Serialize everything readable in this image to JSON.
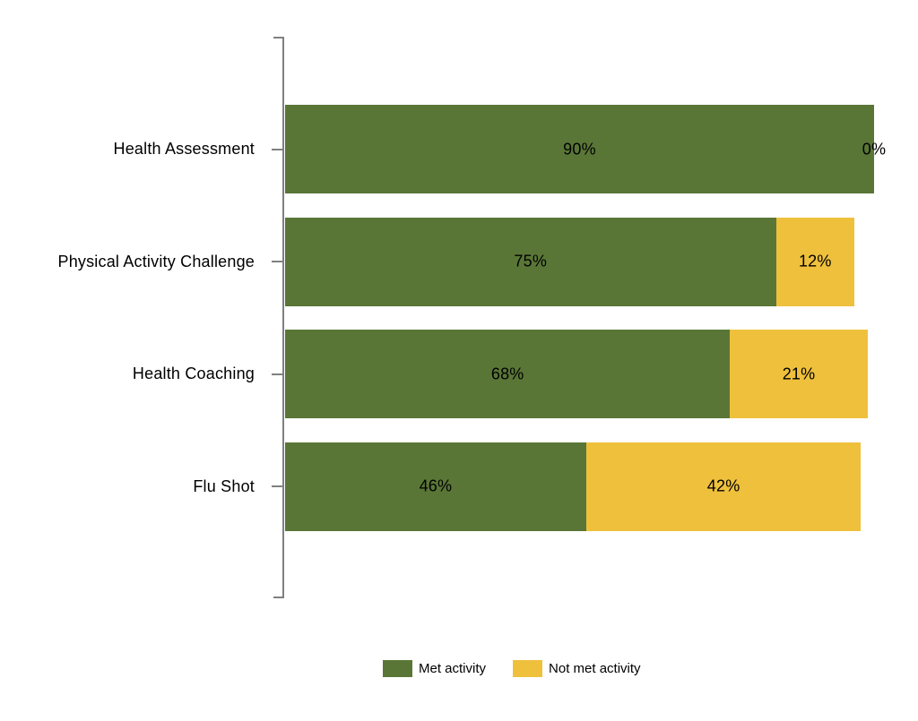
{
  "chart_data": {
    "type": "bar",
    "orientation": "horizontal",
    "stacked": true,
    "title": "",
    "categories": [
      "Health Assessment",
      "Physical Activity Challenge",
      "Health Coaching",
      "Flu Shot"
    ],
    "series": [
      {
        "name": "Met activity",
        "color": "#5A7637",
        "values": [
          90,
          75,
          68,
          46
        ],
        "labels": [
          "90%",
          "75%",
          "68%",
          "46%"
        ]
      },
      {
        "name": "Not met activity",
        "color": "#EEC03C",
        "values": [
          0,
          12,
          21,
          42
        ],
        "labels": [
          "0%",
          "12%",
          "21%",
          "42%"
        ]
      }
    ],
    "xlim": [
      0,
      100
    ],
    "grid": false,
    "x_axis_visible": false,
    "legend_position": "bottom",
    "axis_color": "#808080",
    "text_color": "#000000",
    "background_color": "#FFFFFF"
  }
}
